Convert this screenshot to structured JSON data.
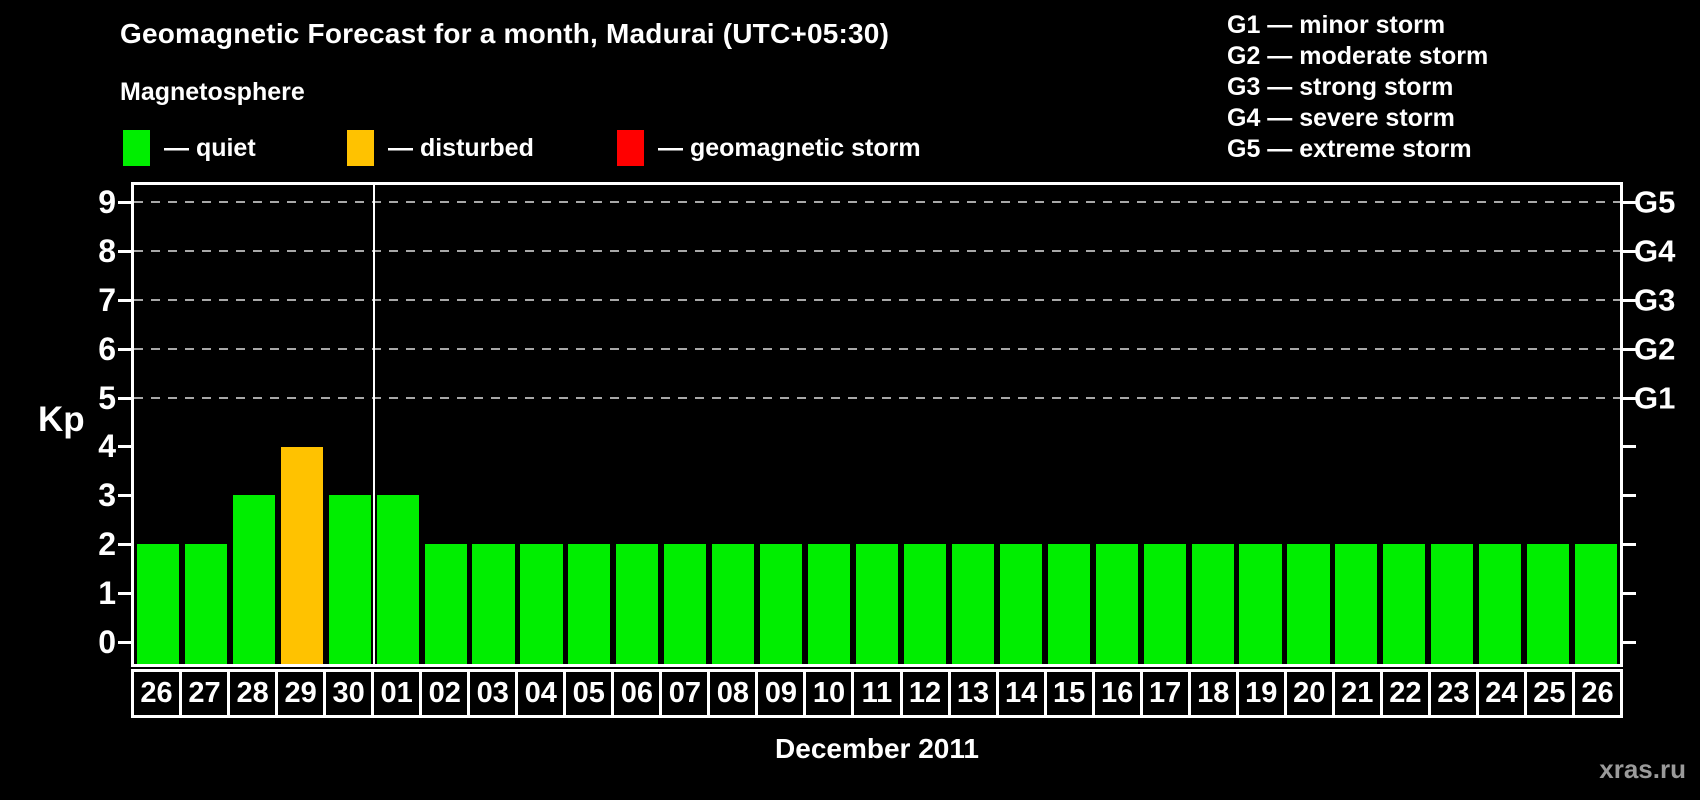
{
  "title": "Geomagnetic Forecast for a month, Madurai (UTC+05:30)",
  "subtitle": "Magnetosphere",
  "legend": {
    "items": [
      {
        "label": "— quiet",
        "status": "quiet",
        "color": "#00ee00"
      },
      {
        "label": "— disturbed",
        "status": "disturbed",
        "color": "#ffc200"
      },
      {
        "label": "— geomagnetic storm",
        "status": "storm",
        "color": "#ff0000"
      }
    ]
  },
  "storm_scale_legend": [
    "G1 — minor storm",
    "G2 — moderate storm",
    "G3 — strong storm",
    "G4 — severe storm",
    "G5 — extreme storm"
  ],
  "watermark": "xras.ru",
  "chart_data": {
    "type": "bar",
    "title": "Geomagnetic Forecast for a month, Madurai (UTC+05:30)",
    "xlabel": "December 2011",
    "ylabel": "Kp",
    "ylim": [
      0,
      9
    ],
    "y_ticks": [
      0,
      1,
      2,
      3,
      4,
      5,
      6,
      7,
      8,
      9
    ],
    "grid": "dashed horizontal lines at Kp 5-9 only",
    "g_levels": [
      {
        "label": "G1",
        "kp": 5
      },
      {
        "label": "G2",
        "kp": 6
      },
      {
        "label": "G3",
        "kp": 7
      },
      {
        "label": "G4",
        "kp": 8
      },
      {
        "label": "G5",
        "kp": 9
      }
    ],
    "categories": [
      "26",
      "27",
      "28",
      "29",
      "30",
      "01",
      "02",
      "03",
      "04",
      "05",
      "06",
      "07",
      "08",
      "09",
      "10",
      "11",
      "12",
      "13",
      "14",
      "15",
      "16",
      "17",
      "18",
      "19",
      "20",
      "21",
      "22",
      "23",
      "24",
      "25",
      "26"
    ],
    "values": [
      2,
      2,
      3,
      4,
      3,
      3,
      2,
      2,
      2,
      2,
      2,
      2,
      2,
      2,
      2,
      2,
      2,
      2,
      2,
      2,
      2,
      2,
      2,
      2,
      2,
      2,
      2,
      2,
      2,
      2,
      2
    ],
    "statuses": [
      "quiet",
      "quiet",
      "quiet",
      "disturbed",
      "quiet",
      "quiet",
      "quiet",
      "quiet",
      "quiet",
      "quiet",
      "quiet",
      "quiet",
      "quiet",
      "quiet",
      "quiet",
      "quiet",
      "quiet",
      "quiet",
      "quiet",
      "quiet",
      "quiet",
      "quiet",
      "quiet",
      "quiet",
      "quiet",
      "quiet",
      "quiet",
      "quiet",
      "quiet",
      "quiet",
      "quiet"
    ],
    "status_colors": {
      "quiet": "#00ee00",
      "disturbed": "#ffc200",
      "storm": "#ff0000"
    },
    "month_boundary_after_index": 4
  }
}
